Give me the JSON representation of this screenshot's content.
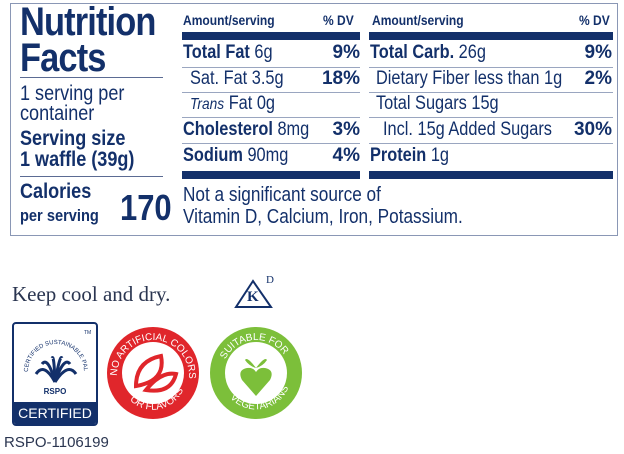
{
  "title": [
    "Nutrition",
    "Facts"
  ],
  "servings": [
    "1 serving per",
    "container"
  ],
  "serving_size": [
    "Serving size",
    "1 waffle (39g)"
  ],
  "calories": {
    "label": "Calories",
    "sub": "per serving",
    "value": "170"
  },
  "header": {
    "amount": "Amount/serving",
    "dv": "% DV"
  },
  "left_rows": [
    {
      "name": "Total Fat",
      "amount": "6g",
      "dv": "9%"
    },
    {
      "name": "Sat. Fat",
      "amount": "3.5g",
      "dv": "18%"
    },
    {
      "name": "Trans",
      "amount": "Fat 0g",
      "dv": ""
    },
    {
      "name": "Cholesterol",
      "amount": "8mg",
      "dv": "3%"
    },
    {
      "name": "Sodium",
      "amount": "90mg",
      "dv": "4%"
    }
  ],
  "right_rows": [
    {
      "name": "Total Carb.",
      "amount": "26g",
      "dv": "9%"
    },
    {
      "name": "Dietary Fiber",
      "amount": "less than 1g",
      "dv": "2%"
    },
    {
      "name": "Total Sugars",
      "amount": "15g",
      "dv": ""
    },
    {
      "name": "Incl. 15g Added Sugars",
      "amount": "",
      "dv": "30%"
    },
    {
      "name": "Protein",
      "amount": "1g",
      "dv": ""
    }
  ],
  "footnote": [
    "Not a significant source of",
    "Vitamin D, Calcium, Iron, Potassium."
  ],
  "storage": "Keep cool and dry.",
  "kosher": {
    "letter": "K",
    "sup": "D"
  },
  "rspo": {
    "arc": "CERTIFIED SUSTAINABLE PALM OIL",
    "tm": "TM",
    "name": "RSPO",
    "certified": "CERTIFIED",
    "id": "RSPO-1106199"
  },
  "badge_red": {
    "top": "NO ARTIFICIAL COLORS",
    "bottom": "OR FLAVORS",
    "color": "#e0262b"
  },
  "badge_green": {
    "top": "SUITABLE FOR",
    "bottom": "VEGETARIANS",
    "color": "#7cbf3a"
  },
  "colors": {
    "navy": "#13306a"
  }
}
